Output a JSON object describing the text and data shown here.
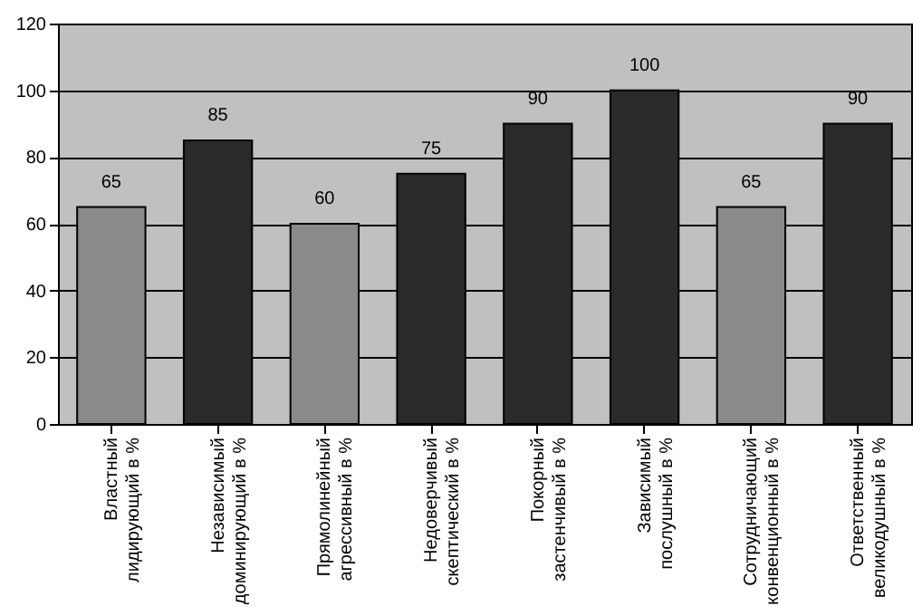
{
  "chart_data": {
    "type": "bar",
    "categories": [
      "Властный лидирующий в %",
      "Независимый доминирующий в %",
      "Прямолинейный агрессивный в %",
      "Недоверчивый скептический в %",
      "Покорный застенчивый в %",
      "Зависимый послушный в %",
      "Сотрудничающий конвенционный в %",
      "Ответственный великодушный в %"
    ],
    "values": [
      65,
      85,
      60,
      75,
      90,
      100,
      65,
      90
    ],
    "colors": [
      "#8a8a8a",
      "#2a2a2a",
      "#8a8a8a",
      "#2a2a2a",
      "#2a2a2a",
      "#2a2a2a",
      "#8a8a8a",
      "#2a2a2a"
    ],
    "ylim": [
      0,
      120
    ],
    "yticks": [
      0,
      20,
      40,
      60,
      80,
      100,
      120
    ],
    "grid": "y",
    "data_labels": true
  }
}
